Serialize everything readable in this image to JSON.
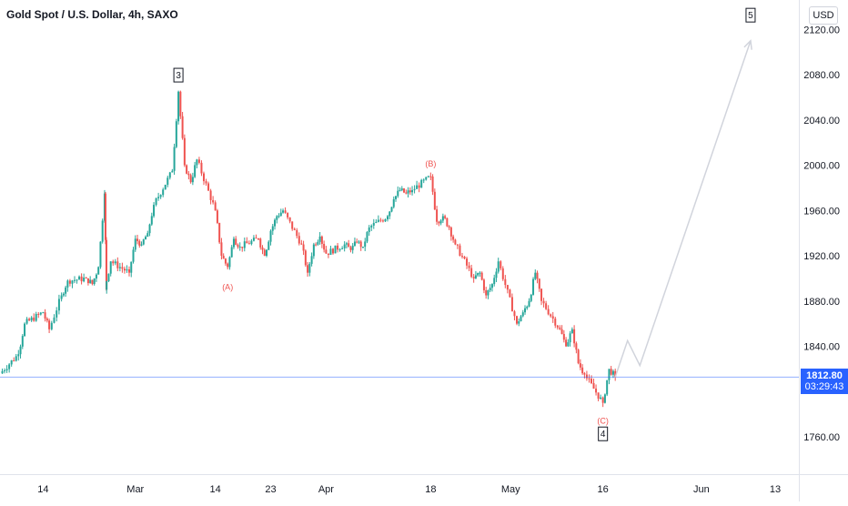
{
  "header": {
    "title": "Gold Spot / U.S. Dollar, 4h, SAXO",
    "currency": "USD"
  },
  "price_tag": {
    "price": "1812.80",
    "countdown": "03:29:43"
  },
  "colors": {
    "up": "#26a69a",
    "down": "#ef5350",
    "wave_label": "#ef5350",
    "projection": "#d1d4dc",
    "price_line": "#2962ff"
  },
  "chart_data": {
    "type": "candlestick",
    "symbol": "Gold Spot / U.S. Dollar, 4h, SAXO",
    "y_ticks": [
      "2120.00",
      "2080.00",
      "2040.00",
      "2000.00",
      "1960.00",
      "1920.00",
      "1880.00",
      "1840.00",
      "1760.00"
    ],
    "x_ticks": [
      "14",
      "Mar",
      "14",
      "23",
      "Apr",
      "18",
      "May",
      "16",
      "Jun",
      "13"
    ],
    "ylim": [
      1727,
      2146
    ],
    "close_path": [
      {
        "d": "Feb 07",
        "p": 1816
      },
      {
        "d": "Feb 10",
        "p": 1833
      },
      {
        "d": "Feb 11",
        "p": 1860
      },
      {
        "d": "Feb 14",
        "p": 1870
      },
      {
        "d": "Feb 15",
        "p": 1855
      },
      {
        "d": "Feb 17",
        "p": 1885
      },
      {
        "d": "Feb 18",
        "p": 1898
      },
      {
        "d": "Feb 21",
        "p": 1900
      },
      {
        "d": "Feb 22",
        "p": 1895
      },
      {
        "d": "Feb 23",
        "p": 1910
      },
      {
        "d": "Feb 24",
        "p": 1975
      },
      {
        "d": "Feb 24",
        "p": 1890
      },
      {
        "d": "Feb 25",
        "p": 1915
      },
      {
        "d": "Feb 28",
        "p": 1905
      },
      {
        "d": "Mar 01",
        "p": 1935
      },
      {
        "d": "Mar 02",
        "p": 1930
      },
      {
        "d": "Mar 03",
        "p": 1940
      },
      {
        "d": "Mar 04",
        "p": 1965
      },
      {
        "d": "Mar 07",
        "p": 1995
      },
      {
        "d": "Mar 08",
        "p": 2065
      },
      {
        "d": "Mar 09",
        "p": 2000
      },
      {
        "d": "Mar 10",
        "p": 1985
      },
      {
        "d": "Mar 11",
        "p": 2005
      },
      {
        "d": "Mar 14",
        "p": 1960
      },
      {
        "d": "Mar 15",
        "p": 1920
      },
      {
        "d": "Mar 16",
        "p": 1910
      },
      {
        "d": "Mar 17",
        "p": 1935
      },
      {
        "d": "Mar 18",
        "p": 1928
      },
      {
        "d": "Mar 21",
        "p": 1935
      },
      {
        "d": "Mar 22",
        "p": 1920
      },
      {
        "d": "Mar 23",
        "p": 1942
      },
      {
        "d": "Mar 24",
        "p": 1955
      },
      {
        "d": "Mar 25",
        "p": 1960
      },
      {
        "d": "Mar 28",
        "p": 1930
      },
      {
        "d": "Mar 29",
        "p": 1905
      },
      {
        "d": "Mar 30",
        "p": 1930
      },
      {
        "d": "Mar 31",
        "p": 1937
      },
      {
        "d": "Apr 01",
        "p": 1922
      },
      {
        "d": "Apr 04",
        "p": 1930
      },
      {
        "d": "Apr 05",
        "p": 1925
      },
      {
        "d": "Apr 06",
        "p": 1932
      },
      {
        "d": "Apr 07",
        "p": 1928
      },
      {
        "d": "Apr 08",
        "p": 1945
      },
      {
        "d": "Apr 11",
        "p": 1955
      },
      {
        "d": "Apr 12",
        "p": 1970
      },
      {
        "d": "Apr 13",
        "p": 1978
      },
      {
        "d": "Apr 14",
        "p": 1975
      },
      {
        "d": "Apr 15",
        "p": 1978
      },
      {
        "d": "Apr 18",
        "p": 1990
      },
      {
        "d": "Apr 19",
        "p": 1950
      },
      {
        "d": "Apr 20",
        "p": 1955
      },
      {
        "d": "Apr 21",
        "p": 1945
      },
      {
        "d": "Apr 22",
        "p": 1930
      },
      {
        "d": "Apr 25",
        "p": 1900
      },
      {
        "d": "Apr 26",
        "p": 1905
      },
      {
        "d": "Apr 27",
        "p": 1885
      },
      {
        "d": "Apr 28",
        "p": 1895
      },
      {
        "d": "Apr 29",
        "p": 1915
      },
      {
        "d": "May 02",
        "p": 1860
      },
      {
        "d": "May 03",
        "p": 1870
      },
      {
        "d": "May 04",
        "p": 1880
      },
      {
        "d": "May 05",
        "p": 1905
      },
      {
        "d": "May 06",
        "p": 1880
      },
      {
        "d": "May 09",
        "p": 1855
      },
      {
        "d": "May 10",
        "p": 1840
      },
      {
        "d": "May 11",
        "p": 1855
      },
      {
        "d": "May 12",
        "p": 1825
      },
      {
        "d": "May 13",
        "p": 1815
      },
      {
        "d": "May 16",
        "p": 1790
      },
      {
        "d": "May 17",
        "p": 1820
      },
      {
        "d": "May 18",
        "p": 1812.8
      }
    ],
    "wave_labels": [
      {
        "text": "3",
        "d": "Mar 08",
        "p": 2080,
        "boxed": true
      },
      {
        "text": "(A)",
        "d": "Mar 16",
        "p": 1893,
        "boxed": false
      },
      {
        "text": "(B)",
        "d": "Apr 18",
        "p": 2002,
        "boxed": false
      },
      {
        "text": "(C)",
        "d": "May 16",
        "p": 1775,
        "boxed": false
      },
      {
        "text": "4",
        "d": "May 16",
        "p": 1763,
        "boxed": true
      },
      {
        "text": "5",
        "d": "Jun 09",
        "p": 2133,
        "boxed": true
      }
    ],
    "projection": [
      {
        "d": "May 18",
        "p": 1812.8
      },
      {
        "d": "May 20",
        "p": 1845
      },
      {
        "d": "May 22",
        "p": 1823
      },
      {
        "d": "Jun 09",
        "p": 2110
      }
    ],
    "last_price": 1812.8
  }
}
